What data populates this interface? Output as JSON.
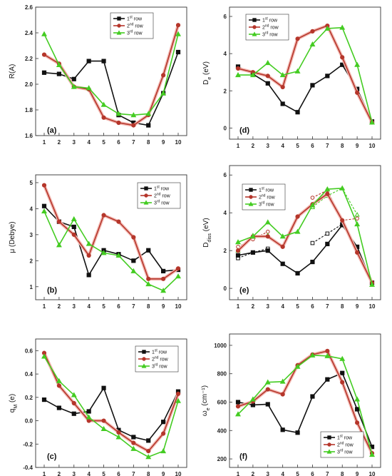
{
  "chart_data": [
    {
      "panel": "(a)",
      "type": "line",
      "ylabel": "R(A)",
      "x": [
        1,
        2,
        3,
        4,
        5,
        6,
        7,
        8,
        9,
        10
      ],
      "ylim": [
        1.6,
        2.6
      ],
      "yticks": [
        "1.6",
        "1.8",
        "2.0",
        "2.2",
        "2.4",
        "2.6"
      ],
      "legend": [
        "1st row",
        "2nd row",
        "3rd row"
      ],
      "legend_position": "top-right",
      "series": [
        {
          "name": "1st row",
          "color": "#111111",
          "marker": "square",
          "values": [
            2.09,
            2.08,
            2.04,
            2.18,
            2.18,
            1.76,
            1.7,
            1.68,
            1.93,
            2.25
          ]
        },
        {
          "name": "2nd row",
          "color": "#b5362b",
          "marker": "circle",
          "values": [
            2.23,
            2.16,
            1.98,
            1.96,
            1.74,
            1.7,
            1.68,
            1.76,
            2.07,
            2.46
          ]
        },
        {
          "name": "3rd row",
          "color": "#44cc22",
          "marker": "triangle",
          "values": [
            2.39,
            2.15,
            1.98,
            1.97,
            1.84,
            1.77,
            1.76,
            1.77,
            1.93,
            2.39
          ]
        }
      ]
    },
    {
      "panel": "(b)",
      "type": "line",
      "ylabel": "μ (Debye)",
      "x": [
        1,
        2,
        3,
        4,
        5,
        6,
        7,
        8,
        9,
        10
      ],
      "ylim": [
        0.5,
        5.3
      ],
      "yticks": [
        "1",
        "2",
        "3",
        "4",
        "5"
      ],
      "legend": [
        "1st row",
        "2nd row",
        "3rd row"
      ],
      "legend_position": "top-right",
      "series": [
        {
          "name": "1st row",
          "color": "#111111",
          "marker": "square",
          "values": [
            4.1,
            3.5,
            3.3,
            1.45,
            2.4,
            2.25,
            2.0,
            2.4,
            1.6,
            1.65
          ]
        },
        {
          "name": "2nd row",
          "color": "#b5362b",
          "marker": "circle",
          "values": [
            4.9,
            3.5,
            3.0,
            2.2,
            3.75,
            3.5,
            2.9,
            1.3,
            1.3,
            1.7
          ]
        },
        {
          "name": "3rd row",
          "color": "#44cc22",
          "marker": "triangle",
          "values": [
            3.9,
            2.6,
            3.6,
            2.65,
            2.3,
            2.2,
            1.6,
            1.1,
            0.85,
            1.4
          ]
        }
      ]
    },
    {
      "panel": "(c)",
      "type": "line",
      "ylabel": "q",
      "ylabel_sub": "M",
      "ylabel_tail": "(e)",
      "x": [
        1,
        2,
        3,
        4,
        5,
        6,
        7,
        8,
        9,
        10
      ],
      "ylim": [
        -0.4,
        0.7
      ],
      "yticks": [
        "-0.4",
        "-0.2",
        "0.0",
        "0.2",
        "0.4",
        "0.6"
      ],
      "legend": [
        "1st row",
        "2nd row",
        "3rd row"
      ],
      "legend_position": "top-right",
      "series": [
        {
          "name": "1st row",
          "color": "#111111",
          "marker": "square",
          "values": [
            0.18,
            0.11,
            0.06,
            0.08,
            0.28,
            -0.08,
            -0.14,
            -0.17,
            -0.01,
            0.25
          ]
        },
        {
          "name": "2nd row",
          "color": "#b5362b",
          "marker": "circle",
          "values": [
            0.58,
            0.3,
            0.15,
            0.0,
            0.0,
            -0.1,
            -0.19,
            -0.26,
            -0.11,
            0.23
          ]
        },
        {
          "name": "3rd row",
          "color": "#44cc22",
          "marker": "triangle",
          "values": [
            0.55,
            0.34,
            0.22,
            0.03,
            -0.07,
            -0.14,
            -0.24,
            -0.31,
            -0.26,
            0.17
          ]
        }
      ]
    },
    {
      "panel": "(d)",
      "type": "line",
      "ylabel": "D",
      "ylabel_sub": "e",
      "ylabel_tail": "(eV)",
      "x": [
        1,
        2,
        3,
        4,
        5,
        6,
        7,
        8,
        9,
        10
      ],
      "ylim": [
        -0.6,
        6.5
      ],
      "yticks": [
        "0",
        "2",
        "4",
        "6"
      ],
      "legend": [
        "1st row",
        "2nd row",
        "3rd row"
      ],
      "legend_position": "top-left",
      "series": [
        {
          "name": "1st row",
          "color": "#111111",
          "marker": "square",
          "values": [
            3.3,
            2.9,
            2.4,
            1.3,
            0.85,
            2.3,
            2.8,
            3.4,
            2.1,
            0.35
          ]
        },
        {
          "name": "2nd row",
          "color": "#b5362b",
          "marker": "circle",
          "values": [
            3.2,
            3.0,
            2.8,
            2.2,
            4.8,
            5.2,
            5.5,
            3.8,
            1.9,
            0.3
          ]
        },
        {
          "name": "3rd row",
          "color": "#44cc22",
          "marker": "triangle",
          "values": [
            2.85,
            2.85,
            3.5,
            2.85,
            3.05,
            4.5,
            5.35,
            5.4,
            3.4,
            0.3
          ]
        }
      ]
    },
    {
      "panel": "(e)",
      "type": "line",
      "ylabel": "D",
      "ylabel_sub": "diss",
      "ylabel_tail": "(eV)",
      "x": [
        1,
        2,
        3,
        4,
        5,
        6,
        7,
        8,
        9,
        10
      ],
      "ylim": [
        -0.6,
        6.5
      ],
      "yticks": [
        "0",
        "2",
        "4",
        "6"
      ],
      "legend": [
        "1st row",
        "2nd row",
        "3rd row"
      ],
      "legend_position": "top-left",
      "series": [
        {
          "name": "1st row",
          "color": "#111111",
          "marker": "square",
          "values": [
            1.75,
            1.9,
            2.0,
            1.3,
            0.8,
            1.4,
            2.35,
            3.35,
            2.2,
            0.3
          ]
        },
        {
          "name": "2nd row",
          "color": "#b5362b",
          "marker": "circle",
          "values": [
            2.0,
            2.75,
            2.75,
            2.2,
            3.8,
            4.45,
            5.0,
            3.6,
            1.9,
            0.3
          ]
        },
        {
          "name": "3rd row",
          "color": "#44cc22",
          "marker": "triangle",
          "values": [
            2.45,
            2.75,
            3.5,
            2.75,
            3.0,
            4.4,
            5.25,
            5.3,
            3.4,
            0.2
          ]
        }
      ],
      "dashed_series": [
        {
          "color": "#111111",
          "marker": "open-square",
          "x": [
            1,
            2,
            3
          ],
          "values": [
            1.6,
            1.9,
            2.1
          ]
        },
        {
          "color": "#111111",
          "marker": "open-square",
          "x": [
            6,
            7,
            8
          ],
          "values": [
            2.4,
            2.9,
            3.4
          ]
        },
        {
          "color": "#b5362b",
          "marker": "open-circle",
          "x": [
            1,
            2,
            3
          ],
          "values": [
            2.2,
            2.6,
            3.0
          ]
        },
        {
          "color": "#b5362b",
          "marker": "open-circle",
          "x": [
            6,
            7,
            8,
            9
          ],
          "values": [
            4.8,
            5.2,
            3.6,
            3.7
          ]
        },
        {
          "color": "#44cc22",
          "marker": "open-triangle",
          "x": [
            1,
            2,
            3
          ],
          "values": [
            2.0,
            2.8,
            2.8
          ]
        },
        {
          "color": "#44cc22",
          "marker": "open-triangle",
          "x": [
            6,
            7,
            8,
            9
          ],
          "values": [
            4.3,
            4.9,
            5.3,
            3.9
          ]
        }
      ]
    },
    {
      "panel": "(f)",
      "type": "line",
      "ylabel": "ω",
      "ylabel_sub": "e",
      "ylabel_tail": "(cm⁻¹)",
      "x": [
        1,
        2,
        3,
        4,
        5,
        6,
        7,
        8,
        9,
        10
      ],
      "ylim": [
        140,
        1080
      ],
      "yticks": [
        "200",
        "400",
        "600",
        "800",
        "1000"
      ],
      "legend": [
        "1st row",
        "2nd row",
        "3rd row"
      ],
      "legend_position": "bottom-right",
      "series": [
        {
          "name": "1st row",
          "color": "#111111",
          "marker": "square",
          "values": [
            600,
            580,
            585,
            405,
            385,
            640,
            760,
            805,
            550,
            285
          ]
        },
        {
          "name": "2nd row",
          "color": "#b5362b",
          "marker": "circle",
          "values": [
            570,
            605,
            690,
            655,
            860,
            935,
            960,
            740,
            455,
            240
          ]
        },
        {
          "name": "3rd row",
          "color": "#44cc22",
          "marker": "triangle",
          "values": [
            515,
            620,
            740,
            745,
            850,
            930,
            925,
            905,
            620,
            230
          ]
        }
      ]
    }
  ]
}
